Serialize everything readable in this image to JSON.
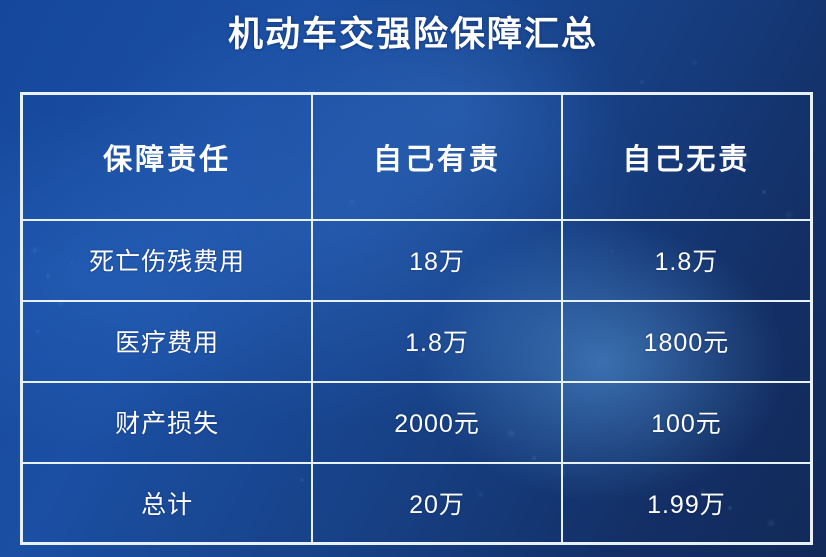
{
  "page": {
    "title_color": "#ffffff",
    "text_color": "#ffffff",
    "border_color": "#e8f1fa",
    "background_base": "#15489c",
    "background_dark": "#122a58",
    "background_glow": "#60a8eb"
  },
  "chart_data": {
    "type": "table",
    "title": "机动车交强险保障汇总",
    "columns": [
      "保障责任",
      "自己有责",
      "自己无责"
    ],
    "rows": [
      [
        "死亡伤残费用",
        "18万",
        "1.8万"
      ],
      [
        "医疗费用",
        "1.8万",
        "1800元"
      ],
      [
        "财产损失",
        "2000元",
        "100元"
      ],
      [
        "总计",
        "20万",
        "1.99万"
      ]
    ]
  }
}
